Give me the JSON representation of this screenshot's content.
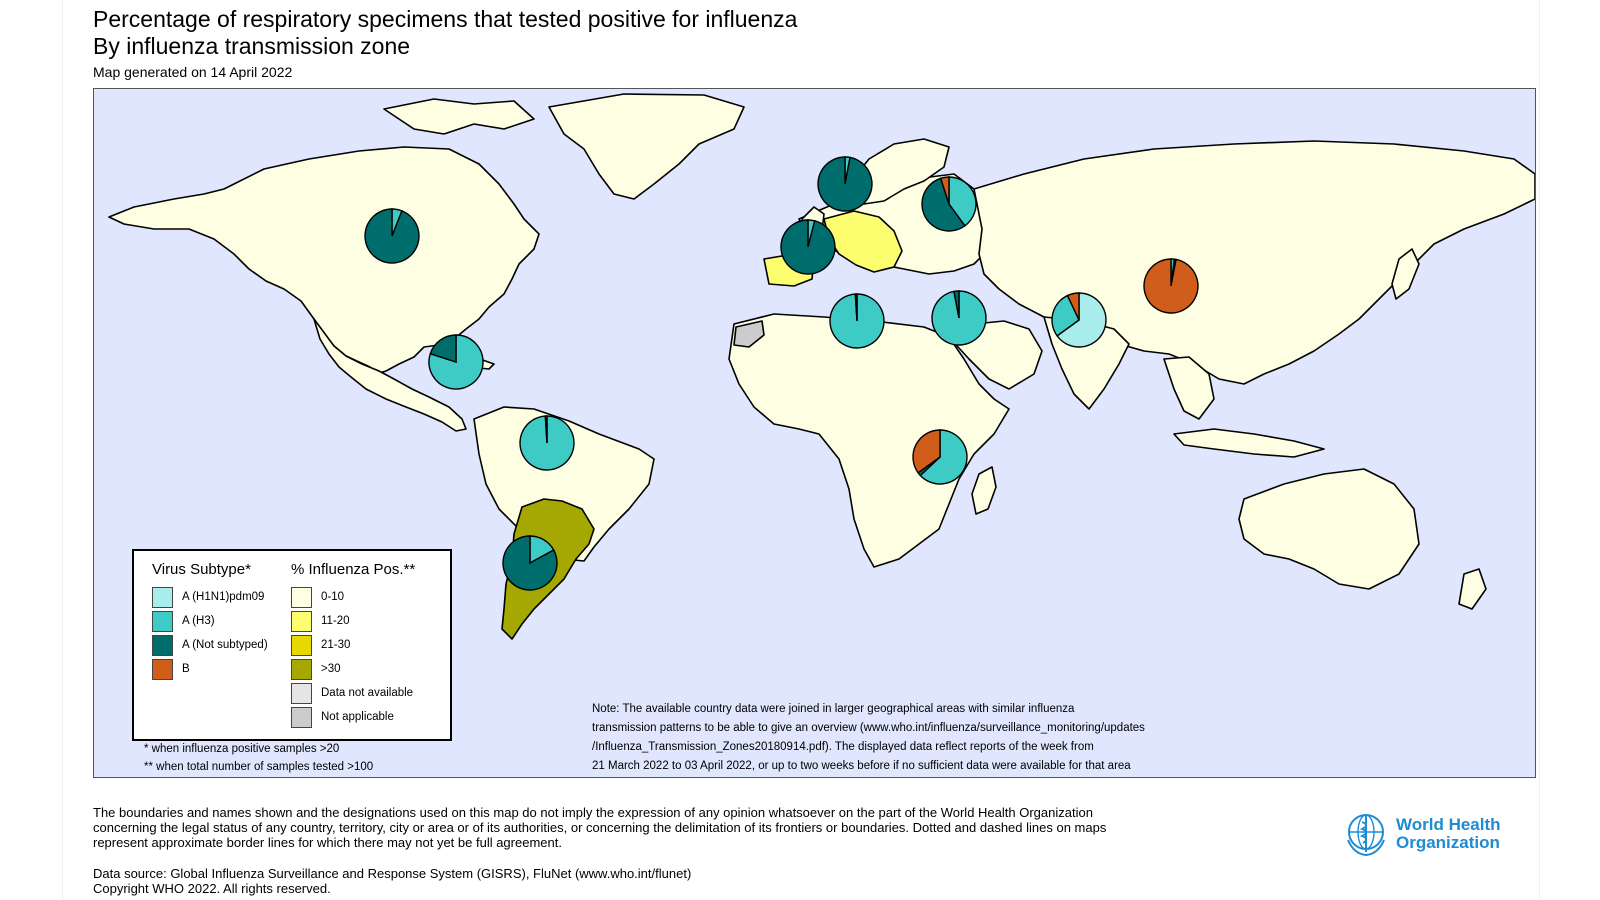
{
  "header": {
    "title": "Percentage of respiratory specimens that tested positive for influenza",
    "subtitle": "By influenza transmission zone",
    "generated": "Map generated on 14 April 2022"
  },
  "colors": {
    "ocean": "#dfe6fd",
    "land": "#fefee3",
    "h1n1": "#a8ecec",
    "h3": "#3ecbc6",
    "not_subtyped": "#006d6d",
    "b": "#d05d1a",
    "pos_0_10": "#fefee3",
    "pos_11_20": "#fdfd70",
    "pos_21_30": "#e6d800",
    "pos_gt30": "#a5a800",
    "not_available": "#e5e5e5",
    "not_applicable": "#cccccc"
  },
  "legend": {
    "subtype_heading": "Virus Subtype*",
    "positivity_heading": "% Influenza Pos.**",
    "subtypes": [
      {
        "label": "A (H1N1)pdm09",
        "color": "#a8ecec"
      },
      {
        "label": "A (H3)",
        "color": "#3ecbc6"
      },
      {
        "label": "A (Not subtyped)",
        "color": "#006d6d"
      },
      {
        "label": "B",
        "color": "#d05d1a"
      }
    ],
    "positivity": [
      {
        "label": "0-10",
        "color": "#fefee3"
      },
      {
        "label": "11-20",
        "color": "#fdfd70"
      },
      {
        "label": "21-30",
        "color": "#e6d800"
      },
      {
        "label": ">30",
        "color": "#a5a800"
      },
      {
        "label": "Data not available",
        "color": "#e5e5e5"
      },
      {
        "label": "Not applicable",
        "color": "#cccccc"
      }
    ],
    "footnote_1": "* when influenza positive samples >20",
    "footnote_2": "** when total number of samples tested >100"
  },
  "note": {
    "line1": "Note: The available country data were joined in larger geographical areas with similar influenza",
    "line2": "transmission patterns to be able to give an overview (www.who.int/influenza/surveillance_monitoring/updates",
    "line3": "/Influenza_Transmission_Zones20180914.pdf). The displayed data reflect reports of the week from",
    "line4": "21 March 2022 to 03 April 2022, or up to two weeks before if no sufficient data were available for that area"
  },
  "footer": {
    "disclaimer_1": "The boundaries and names shown and the designations used on this map do not imply the expression of any opinion whatsoever on the part of the World Health Organization",
    "disclaimer_2": "concerning the legal status of any country, territory, city or area or of its authorities, or concerning the delimitation of its frontiers or boundaries. Dotted and dashed lines on maps",
    "disclaimer_3": "represent approximate border lines for which there may not yet be full agreement.",
    "data_source": "Data source: Global Influenza Surveillance and Response System (GISRS), FluNet (www.who.int/flunet)",
    "copyright": "Copyright WHO 2022. All rights reserved.",
    "logo_line1": "World Health",
    "logo_line2": "Organization"
  },
  "zone_pies": [
    {
      "zone": "North America",
      "h1n1": 0,
      "h3": 0.06,
      "not_subtyped": 0.94,
      "b": 0
    },
    {
      "zone": "Northern Europe",
      "h1n1": 0,
      "h3": 0.03,
      "not_subtyped": 0.97,
      "b": 0
    },
    {
      "zone": "Eastern Europe",
      "h1n1": 0,
      "h3": 0.4,
      "not_subtyped": 0.55,
      "b": 0.05
    },
    {
      "zone": "South West Europe",
      "h1n1": 0,
      "h3": 0.04,
      "not_subtyped": 0.96,
      "b": 0
    },
    {
      "zone": "Central America and Caribbean",
      "h1n1": 0,
      "h3": 0.8,
      "not_subtyped": 0.2,
      "b": 0
    },
    {
      "zone": "Northern Africa",
      "h1n1": 0,
      "h3": 0.99,
      "not_subtyped": 0.01,
      "b": 0
    },
    {
      "zone": "Western Asia",
      "h1n1": 0,
      "h3": 0.97,
      "not_subtyped": 0.03,
      "b": 0
    },
    {
      "zone": "Southern Asia",
      "h1n1": 0.65,
      "h3": 0.28,
      "not_subtyped": 0,
      "b": 0.07
    },
    {
      "zone": "Eastern Asia",
      "h1n1": 0,
      "h3": 0.02,
      "not_subtyped": 0.01,
      "b": 0.97
    },
    {
      "zone": "Tropical South America",
      "h1n1": 0,
      "h3": 0.99,
      "not_subtyped": 0.01,
      "b": 0
    },
    {
      "zone": "Eastern Africa",
      "h1n1": 0,
      "h3": 0.63,
      "not_subtyped": 0.02,
      "b": 0.35
    },
    {
      "zone": "Temperate South America",
      "h1n1": 0,
      "h3": 0.17,
      "not_subtyped": 0.83,
      "b": 0
    }
  ]
}
